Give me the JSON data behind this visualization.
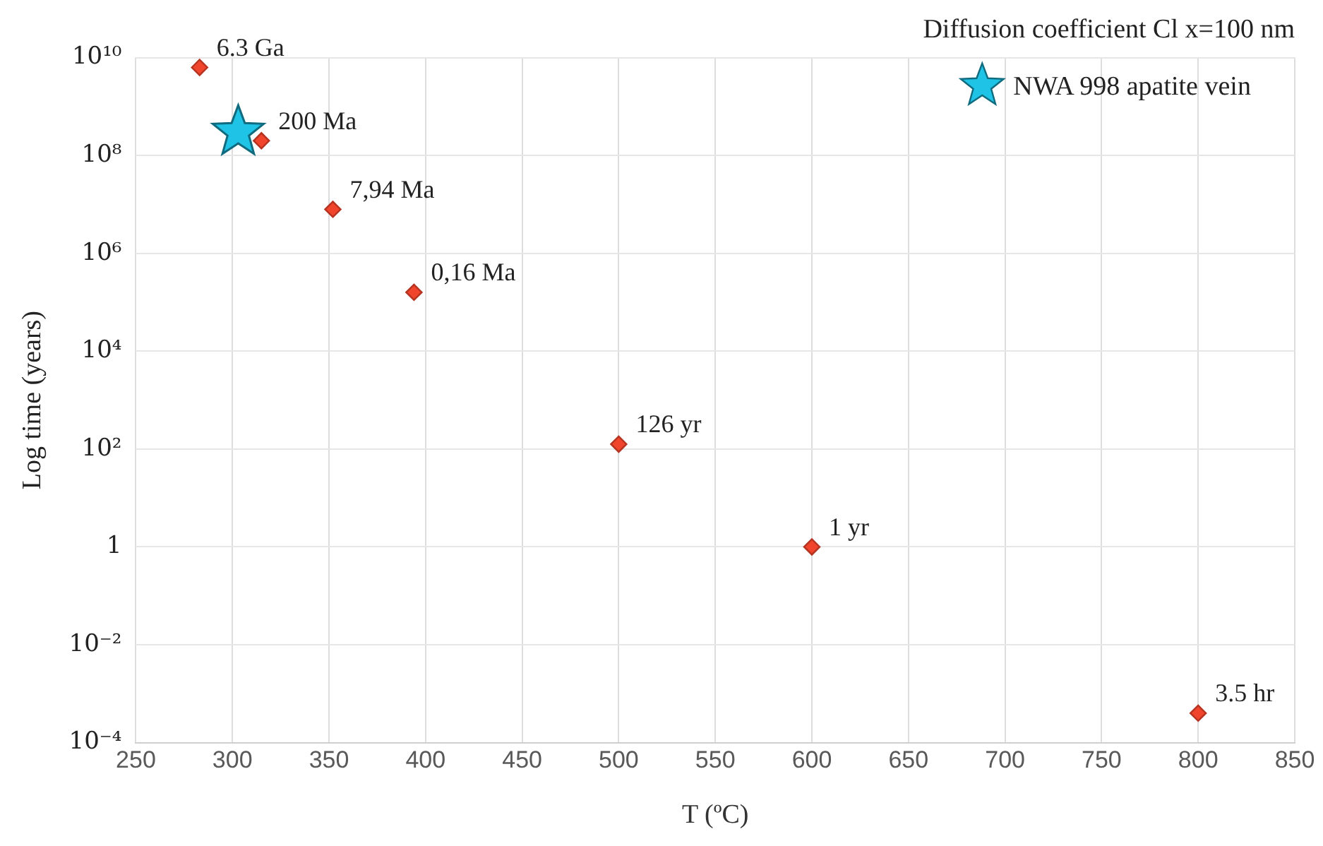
{
  "chart_data": {
    "type": "scatter",
    "title": "Diffusion coefficient Cl x=100 nm",
    "xlabel": "T (ºC)",
    "ylabel": "Log time (years)",
    "series": [
      {
        "type": "scatter",
        "marker": "diamond",
        "color": "#f0452c",
        "x": [
          283,
          315,
          352,
          394,
          500,
          600,
          800
        ],
        "values": [
          6300000000.0,
          200000000.0,
          7940000.0,
          160000.0,
          126,
          1,
          0.0004
        ]
      },
      {
        "type": "scatter",
        "marker": "star",
        "name": "NWA 998 apatite vein",
        "color": "#1ec3e6",
        "x": [
          303
        ],
        "values": [
          300000000.0
        ]
      }
    ],
    "annotations": [
      {
        "text": "6.3 Ga",
        "x": 283,
        "y": 6300000000.0
      },
      {
        "text": "200 Ma",
        "x": 315,
        "y": 200000000.0
      },
      {
        "text": "7,94 Ma",
        "x": 352,
        "y": 7940000.0
      },
      {
        "text": "0,16 Ma",
        "x": 394,
        "y": 160000.0
      },
      {
        "text": "126 yr",
        "x": 500,
        "y": 126
      },
      {
        "text": "1 yr",
        "x": 600,
        "y": 1
      },
      {
        "text": "3.5 hr",
        "x": 800,
        "y": 0.0004
      }
    ],
    "xlim": [
      250,
      850
    ],
    "xticks": [
      250,
      300,
      350,
      400,
      450,
      500,
      550,
      600,
      650,
      700,
      750,
      800,
      850
    ],
    "ylim": [
      0.0001,
      10000000000.0
    ],
    "yticks": [
      {
        "value": 0.0001,
        "label": "10⁻⁴"
      },
      {
        "value": 0.01,
        "label": "10⁻²"
      },
      {
        "value": 1,
        "label": "1"
      },
      {
        "value": 100,
        "label": "10²"
      },
      {
        "value": 10000.0,
        "label": "10⁴"
      },
      {
        "value": 1000000.0,
        "label": "10⁶"
      },
      {
        "value": 100000000.0,
        "label": "10⁸"
      },
      {
        "value": 10000000000.0,
        "label": "10¹⁰"
      }
    ],
    "log": "y",
    "grid": true,
    "legend": "top right"
  }
}
